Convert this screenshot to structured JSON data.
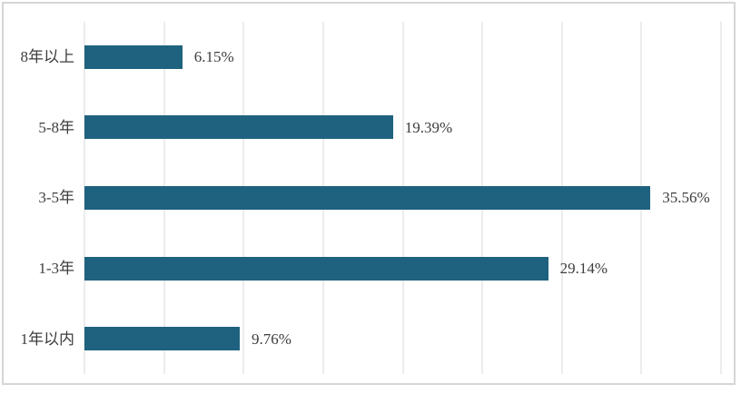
{
  "chart_data": {
    "type": "bar",
    "orientation": "horizontal",
    "title": "",
    "xlabel": "",
    "ylabel": "",
    "categories_top_to_bottom": [
      "8年以上",
      "5-8年",
      "3-5年",
      "1-3年",
      "1年以内"
    ],
    "values": [
      6.15,
      19.39,
      35.56,
      29.14,
      9.76
    ],
    "value_labels": [
      "6.15%",
      "19.39%",
      "35.56%",
      "29.14%",
      "9.76%"
    ],
    "xlim": [
      0,
      40
    ],
    "gridline_step": 5,
    "grid": true,
    "axis_tick_labels_shown": false,
    "legend": false
  },
  "colors": {
    "bar": "#1f627f",
    "gridline": "#d9d9d9",
    "frame_border": "#d6d6d6",
    "text": "#3d3d3d",
    "background": "#ffffff"
  }
}
